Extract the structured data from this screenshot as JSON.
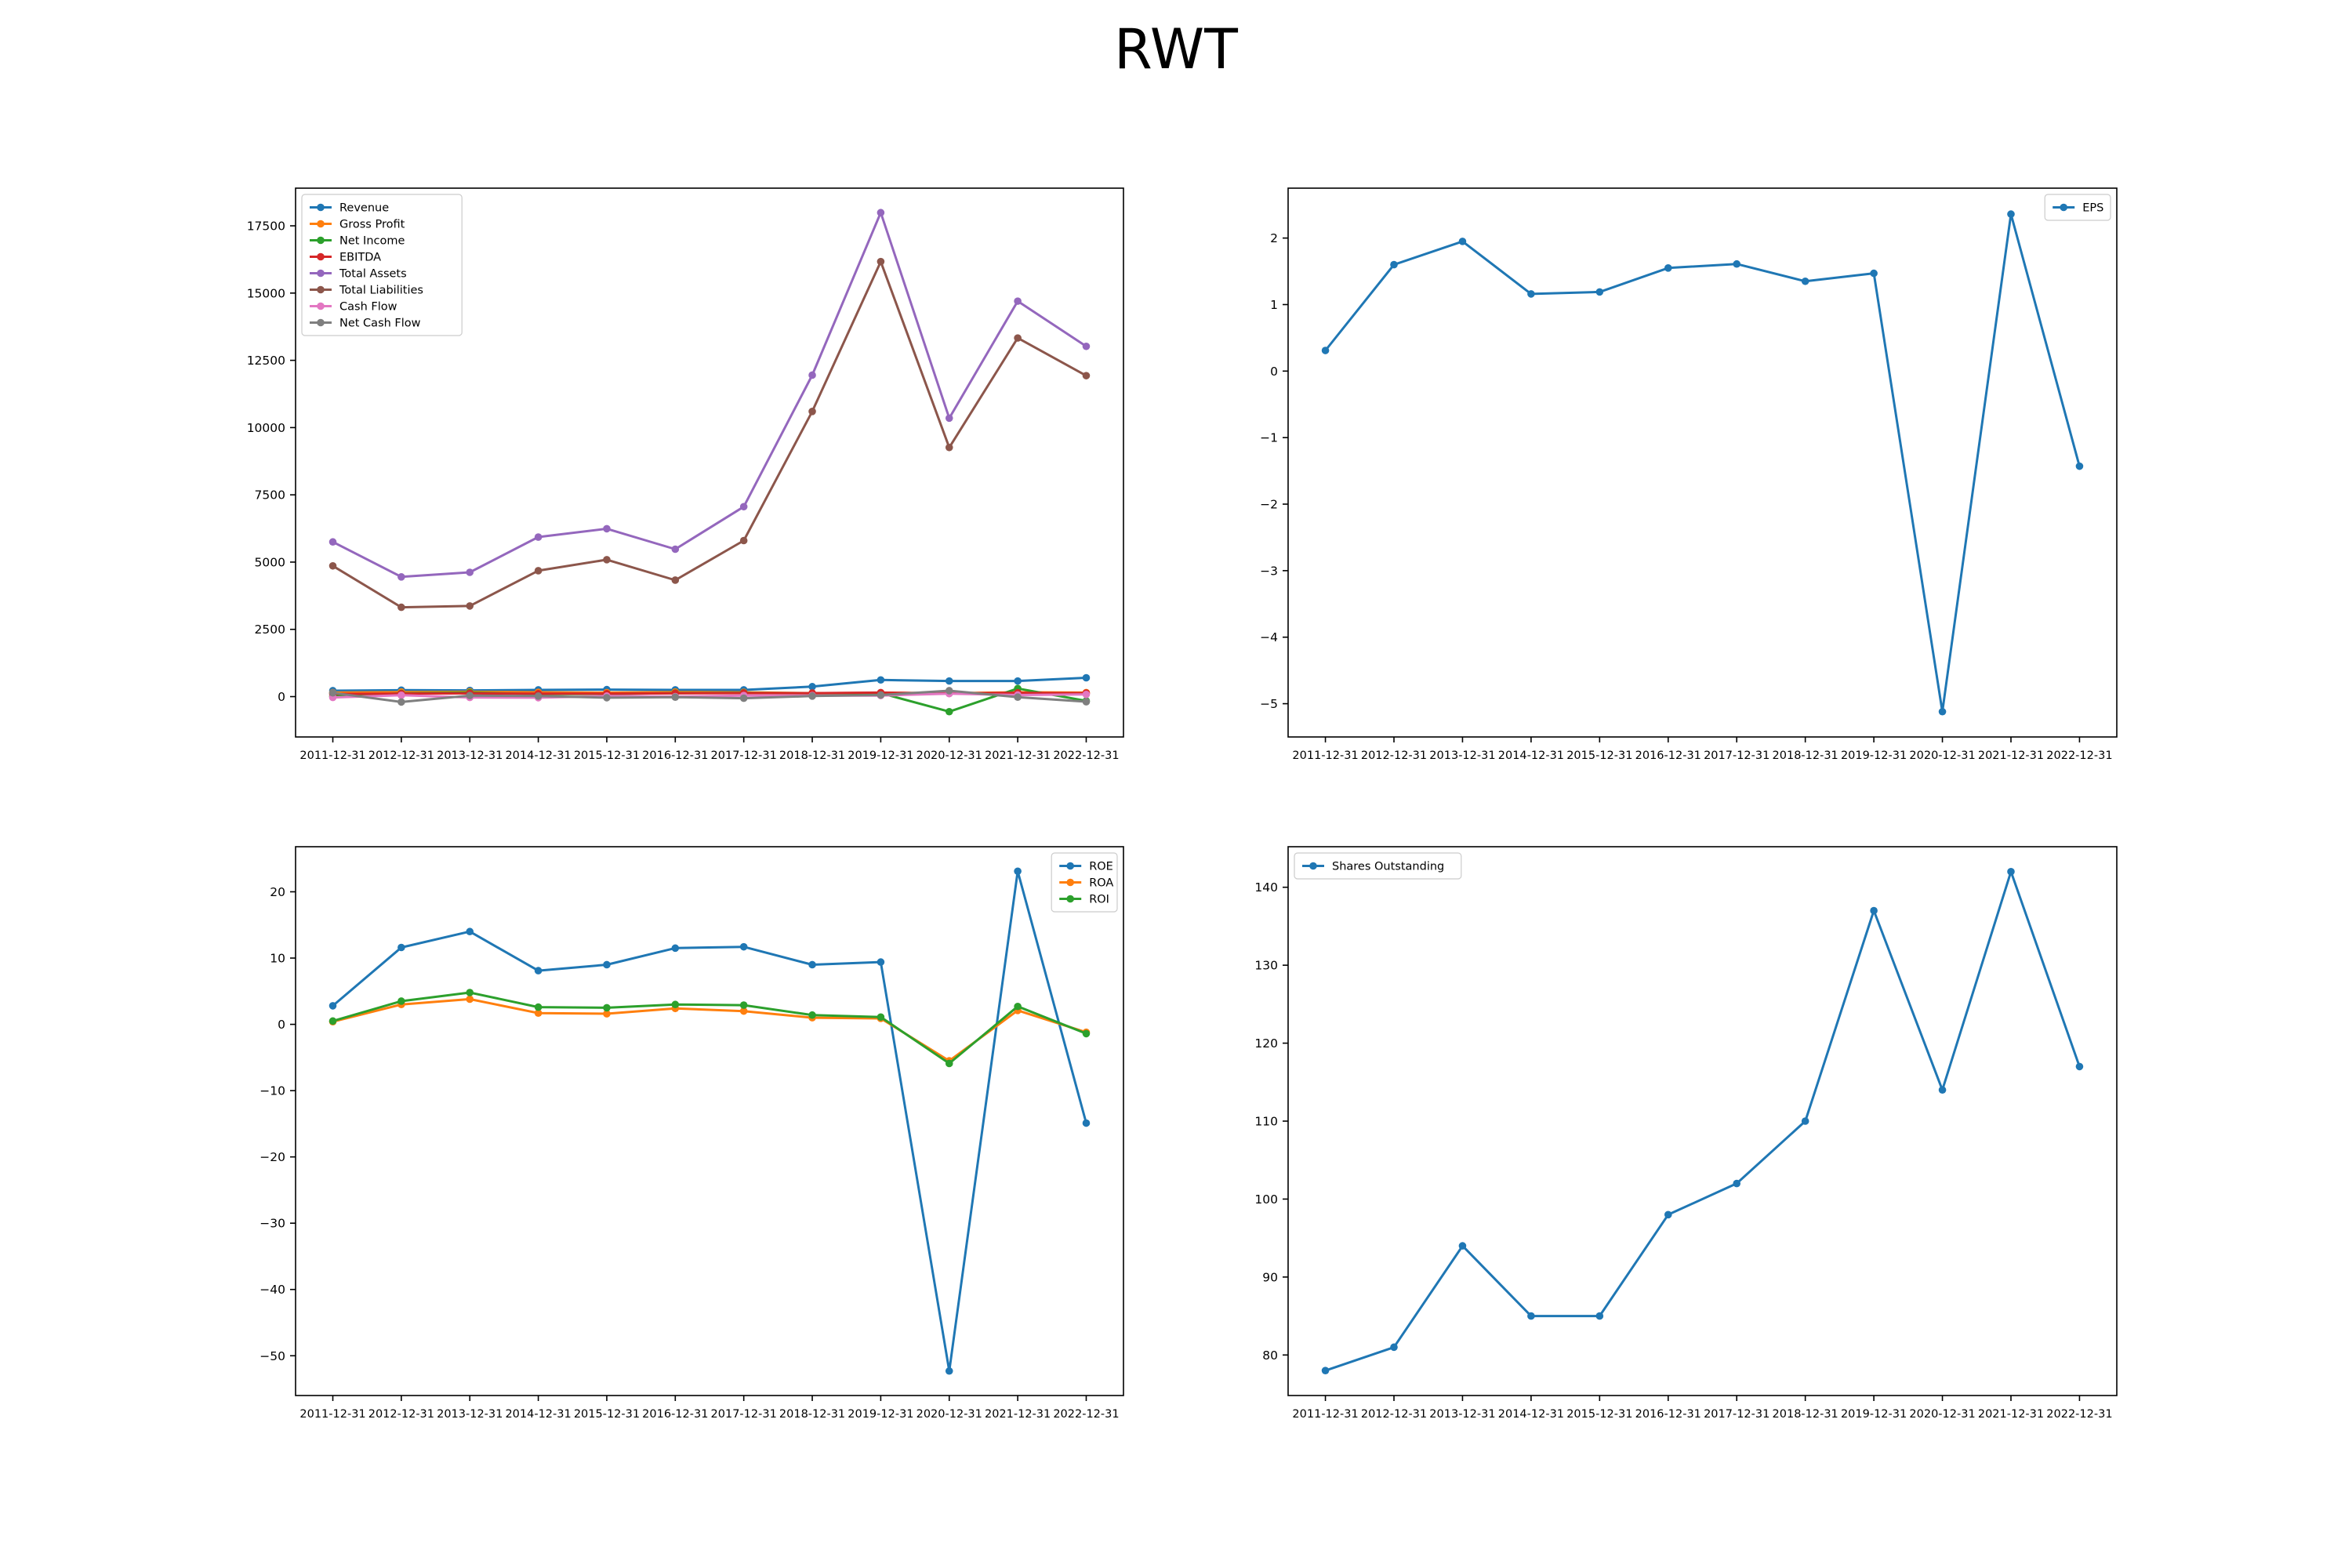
{
  "figure": {
    "title": "RWT"
  },
  "chart_data": [
    {
      "type": "line",
      "title": "",
      "xlabel": "",
      "ylabel": "",
      "categories": [
        "2011-12-31",
        "2012-12-31",
        "2013-12-31",
        "2014-12-31",
        "2015-12-31",
        "2016-12-31",
        "2017-12-31",
        "2018-12-31",
        "2019-12-31",
        "2020-12-31",
        "2021-12-31",
        "2022-12-31"
      ],
      "ylim": [
        -1500,
        18900
      ],
      "yticks": [
        0,
        2500,
        5000,
        7500,
        10000,
        12500,
        15000,
        17500
      ],
      "legend": "top-left",
      "series": [
        {
          "name": "Revenue",
          "color": "#1f77b4",
          "values": [
            220,
            240,
            230,
            250,
            260,
            250,
            250,
            370,
            620,
            580,
            580,
            700
          ]
        },
        {
          "name": "Gross Profit",
          "color": "#ff7f0e",
          "values": [
            150,
            170,
            180,
            160,
            150,
            170,
            160,
            130,
            140,
            130,
            160,
            150
          ]
        },
        {
          "name": "Net Income",
          "color": "#2ca02c",
          "values": [
            20,
            120,
            150,
            90,
            100,
            130,
            140,
            120,
            130,
            -560,
            300,
            -160
          ]
        },
        {
          "name": "EBITDA",
          "color": "#d62728",
          "values": [
            100,
            110,
            120,
            110,
            110,
            120,
            130,
            130,
            150,
            120,
            140,
            130
          ]
        },
        {
          "name": "Total Assets",
          "color": "#9467bd",
          "values": [
            5750,
            4450,
            4620,
            5930,
            6240,
            5480,
            7060,
            11950,
            17990,
            10350,
            14700,
            13020
          ]
        },
        {
          "name": "Total Liabilities",
          "color": "#8c564b",
          "values": [
            4860,
            3320,
            3370,
            4680,
            5090,
            4330,
            5800,
            10600,
            16170,
            9260,
            13330,
            11930
          ]
        },
        {
          "name": "Cash Flow",
          "color": "#e377c2",
          "values": [
            -30,
            50,
            -30,
            -40,
            20,
            0,
            40,
            40,
            40,
            110,
            60,
            80
          ]
        },
        {
          "name": "Net Cash Flow",
          "color": "#7f7f7f",
          "values": [
            140,
            -200,
            40,
            20,
            -40,
            -20,
            -60,
            20,
            60,
            220,
            -20,
            -190
          ]
        }
      ]
    },
    {
      "type": "line",
      "title": "",
      "xlabel": "",
      "ylabel": "",
      "categories": [
        "2011-12-31",
        "2012-12-31",
        "2013-12-31",
        "2014-12-31",
        "2015-12-31",
        "2016-12-31",
        "2017-12-31",
        "2018-12-31",
        "2019-12-31",
        "2020-12-31",
        "2021-12-31",
        "2022-12-31"
      ],
      "ylim": [
        -5.5,
        2.75
      ],
      "yticks": [
        -5,
        -4,
        -3,
        -2,
        -1,
        0,
        1,
        2
      ],
      "legend": "top-right",
      "series": [
        {
          "name": "EPS",
          "color": "#1f77b4",
          "values": [
            0.31,
            1.6,
            1.95,
            1.16,
            1.19,
            1.55,
            1.61,
            1.35,
            1.47,
            -5.12,
            2.36,
            -1.43
          ]
        }
      ]
    },
    {
      "type": "line",
      "title": "",
      "xlabel": "",
      "ylabel": "",
      "categories": [
        "2011-12-31",
        "2012-12-31",
        "2013-12-31",
        "2014-12-31",
        "2015-12-31",
        "2016-12-31",
        "2017-12-31",
        "2018-12-31",
        "2019-12-31",
        "2020-12-31",
        "2021-12-31",
        "2022-12-31"
      ],
      "ylim": [
        -56.0,
        26.8
      ],
      "yticks": [
        -50,
        -40,
        -30,
        -20,
        -10,
        0,
        10,
        20
      ],
      "legend": "top-right",
      "series": [
        {
          "name": "ROE",
          "color": "#1f77b4",
          "values": [
            2.8,
            11.6,
            14.0,
            8.1,
            9.0,
            11.5,
            11.7,
            9.0,
            9.4,
            -52.3,
            23.1,
            -14.9
          ]
        },
        {
          "name": "ROA",
          "color": "#ff7f0e",
          "values": [
            0.4,
            3.0,
            3.8,
            1.7,
            1.6,
            2.4,
            2.0,
            1.0,
            0.9,
            -5.5,
            2.1,
            -1.2
          ]
        },
        {
          "name": "ROI",
          "color": "#2ca02c",
          "values": [
            0.5,
            3.5,
            4.8,
            2.6,
            2.5,
            3.0,
            2.9,
            1.4,
            1.1,
            -5.9,
            2.7,
            -1.4
          ]
        }
      ]
    },
    {
      "type": "line",
      "title": "",
      "xlabel": "",
      "ylabel": "",
      "categories": [
        "2011-12-31",
        "2012-12-31",
        "2013-12-31",
        "2014-12-31",
        "2015-12-31",
        "2016-12-31",
        "2017-12-31",
        "2018-12-31",
        "2019-12-31",
        "2020-12-31",
        "2021-12-31",
        "2022-12-31"
      ],
      "ylim": [
        74.8,
        145.2
      ],
      "yticks": [
        80,
        90,
        100,
        110,
        120,
        130,
        140
      ],
      "legend": "top-left",
      "series": [
        {
          "name": "Shares Outstanding",
          "color": "#1f77b4",
          "values": [
            78,
            81,
            94,
            85,
            85,
            98,
            102,
            110,
            137,
            114,
            142,
            117
          ]
        }
      ]
    }
  ]
}
